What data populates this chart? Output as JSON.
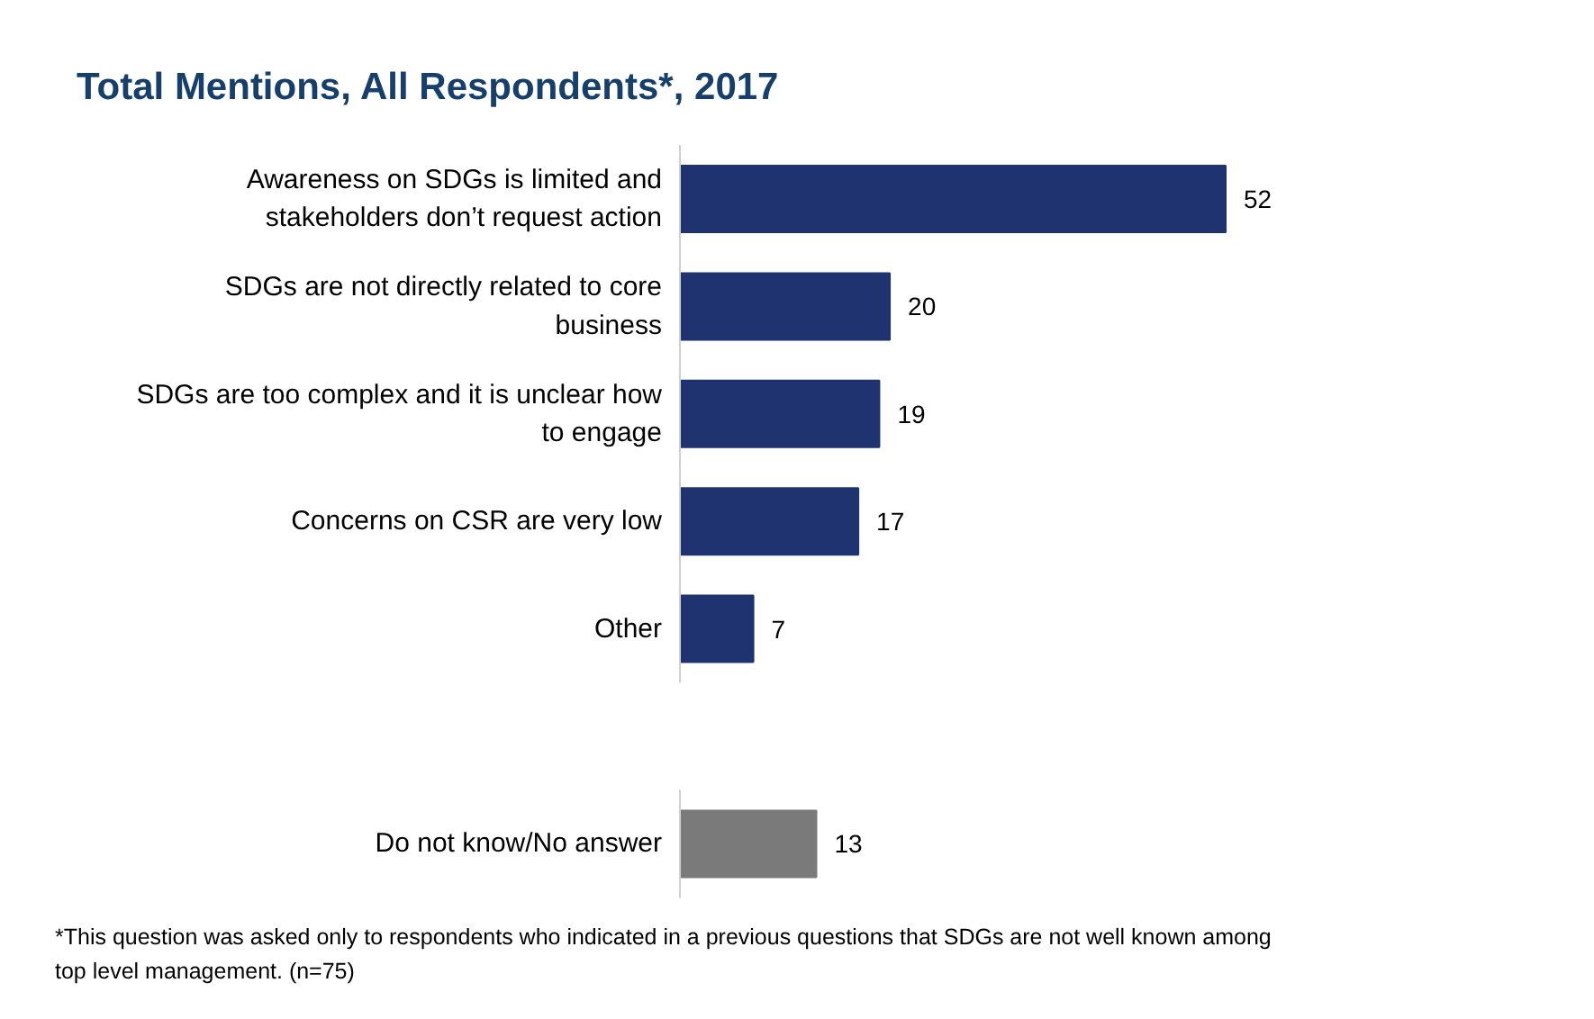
{
  "chart_data": {
    "type": "bar",
    "orientation": "horizontal",
    "title": "Total Mentions, All Respondents*, 2017",
    "categories": [
      "Awareness on SDGs is limited and\nstakeholders don’t request action",
      "SDGs are not directly related to core\nbusiness",
      "SDGs are too complex and it is unclear how\nto engage",
      "Concerns on CSR are very low",
      "Other",
      null,
      "Do not know/No answer"
    ],
    "values": [
      52,
      20,
      19,
      17,
      7,
      null,
      13
    ],
    "colors": [
      "#1f3370",
      "#1f3370",
      "#1f3370",
      "#1f3370",
      "#1f3370",
      null,
      "#7a7a7a"
    ],
    "data_labels": true,
    "annotations": [
      "*This question was asked only to respondents who indicated in a previous questions that SDGs are not well known among\ntop level management. (n=75)"
    ]
  }
}
